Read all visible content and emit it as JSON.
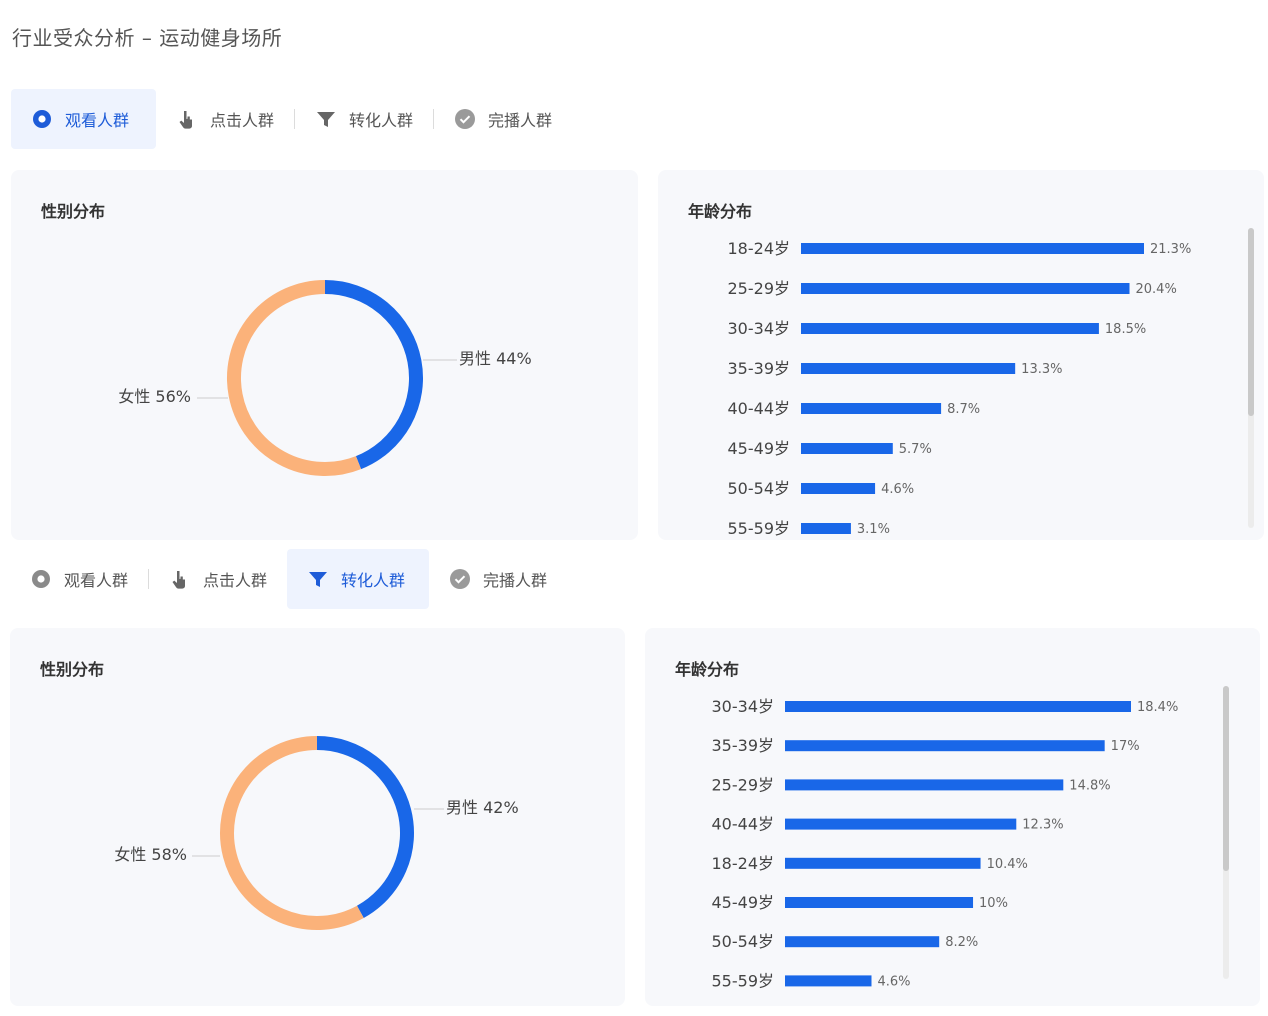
{
  "page": {
    "title": "行业受众分析 – 运动健身场所"
  },
  "colors": {
    "male": "#1967e8",
    "female": "#fbb27a",
    "bar": "#1967e8",
    "accent": "#1e5cd8"
  },
  "panels": [
    {
      "tabs": [
        {
          "label": "观看人群",
          "icon": "eye-circle-icon"
        },
        {
          "label": "点击人群",
          "icon": "pointer-hand-icon"
        },
        {
          "label": "转化人群",
          "icon": "funnel-icon"
        },
        {
          "label": "完播人群",
          "icon": "check-circle-icon"
        }
      ],
      "active_tab": 0,
      "gender": {
        "title": "性别分布",
        "male_label": "男性 44%",
        "female_label": "女性 56%"
      },
      "age": {
        "title": "年龄分布"
      }
    },
    {
      "tabs": [
        {
          "label": "观看人群",
          "icon": "eye-circle-icon"
        },
        {
          "label": "点击人群",
          "icon": "pointer-hand-icon"
        },
        {
          "label": "转化人群",
          "icon": "funnel-icon"
        },
        {
          "label": "完播人群",
          "icon": "check-circle-icon"
        }
      ],
      "active_tab": 2,
      "gender": {
        "title": "性别分布",
        "male_label": "男性 42%",
        "female_label": "女性 58%"
      },
      "age": {
        "title": "年龄分布"
      }
    }
  ],
  "chart_data": [
    {
      "type": "pie",
      "categories": [
        "男性",
        "女性"
      ],
      "values": [
        44,
        56
      ],
      "donut": true
    },
    {
      "type": "bar",
      "orientation": "horizontal",
      "categories": [
        "18-24岁",
        "25-29岁",
        "30-34岁",
        "35-39岁",
        "40-44岁",
        "45-49岁",
        "50-54岁",
        "55-59岁"
      ],
      "values": [
        21.3,
        20.4,
        18.5,
        13.3,
        8.7,
        5.7,
        4.6,
        3.1
      ],
      "value_labels": [
        "21.3%",
        "20.4%",
        "18.5%",
        "13.3%",
        "8.7%",
        "5.7%",
        "4.6%",
        "3.1%"
      ]
    },
    {
      "type": "pie",
      "categories": [
        "男性",
        "女性"
      ],
      "values": [
        42,
        58
      ],
      "donut": true
    },
    {
      "type": "bar",
      "orientation": "horizontal",
      "categories": [
        "30-34岁",
        "35-39岁",
        "25-29岁",
        "40-44岁",
        "18-24岁",
        "45-49岁",
        "50-54岁",
        "55-59岁"
      ],
      "values": [
        18.4,
        17,
        14.8,
        12.3,
        10.4,
        10,
        8.2,
        4.6
      ],
      "value_labels": [
        "18.4%",
        "17%",
        "14.8%",
        "12.3%",
        "10.4%",
        "10%",
        "8.2%",
        "4.6%"
      ]
    }
  ]
}
